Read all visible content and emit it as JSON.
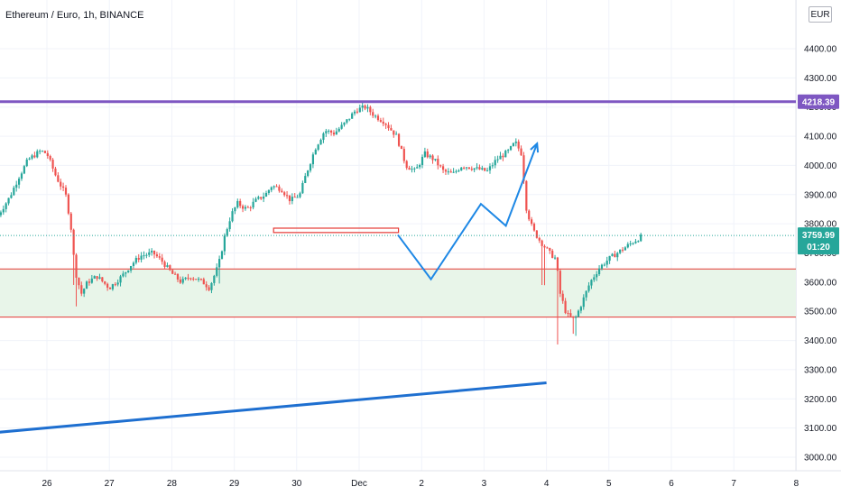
{
  "chart_data": {
    "type": "candlestick",
    "title": "Ethereum / Euro, 1h, BINANCE",
    "currency": "EUR",
    "x_ticks": [
      "26",
      "27",
      "28",
      "29",
      "30",
      "Dec",
      "2",
      "3",
      "4",
      "5",
      "6",
      "7",
      "8"
    ],
    "y_ticks": [
      "3000.00",
      "3100.00",
      "3200.00",
      "3300.00",
      "3400.00",
      "3500.00",
      "3600.00",
      "3700.00",
      "3800.00",
      "3900.00",
      "4000.00",
      "4100.00",
      "4200.00",
      "4300.00",
      "4400.00"
    ],
    "ylim": [
      2960,
      4500
    ],
    "resistance_line": {
      "price": 4218.39,
      "label": "4218.39",
      "color": "#7e57c2"
    },
    "current_price": {
      "price": 3759.99,
      "label": "3759.99",
      "countdown": "01:20",
      "color": "#26a69a"
    },
    "support_zone": {
      "top": 3645,
      "bottom": 3480,
      "border_color": "#e53935",
      "fill_color": "#e8f5e9"
    },
    "small_box": {
      "day_start": 3.63,
      "day_end": 5.63,
      "low": 3770,
      "high": 3785,
      "color": "#e53935"
    },
    "trendline": {
      "points": [
        [
          -0.8,
          3085
        ],
        [
          8.0,
          3255
        ]
      ],
      "color": "#1e6fd0"
    },
    "projection": {
      "points": [
        [
          5.62,
          3762
        ],
        [
          6.15,
          3610
        ],
        [
          6.95,
          3868
        ],
        [
          7.35,
          3793
        ],
        [
          7.85,
          4075
        ]
      ],
      "color": "#1e88e5"
    },
    "price_path": [
      [
        -0.78,
        3830
      ],
      [
        -0.6,
        3890
      ],
      [
        -0.45,
        3960
      ],
      [
        -0.3,
        4020
      ],
      [
        -0.1,
        4050
      ],
      [
        0.0,
        4040
      ],
      [
        0.15,
        3960
      ],
      [
        0.3,
        3900
      ],
      [
        0.38,
        3800
      ],
      [
        0.45,
        3640
      ],
      [
        0.55,
        3560
      ],
      [
        0.65,
        3600
      ],
      [
        0.8,
        3620
      ],
      [
        1.0,
        3580
      ],
      [
        1.2,
        3620
      ],
      [
        1.35,
        3660
      ],
      [
        1.5,
        3690
      ],
      [
        1.7,
        3700
      ],
      [
        1.85,
        3670
      ],
      [
        2.0,
        3630
      ],
      [
        2.15,
        3600
      ],
      [
        2.3,
        3620
      ],
      [
        2.5,
        3600
      ],
      [
        2.6,
        3580
      ],
      [
        2.75,
        3660
      ],
      [
        2.85,
        3760
      ],
      [
        2.95,
        3830
      ],
      [
        3.05,
        3870
      ],
      [
        3.2,
        3850
      ],
      [
        3.35,
        3880
      ],
      [
        3.5,
        3900
      ],
      [
        3.6,
        3930
      ],
      [
        3.75,
        3920
      ],
      [
        3.9,
        3880
      ],
      [
        4.05,
        3900
      ],
      [
        4.15,
        3970
      ],
      [
        4.3,
        4060
      ],
      [
        4.45,
        4120
      ],
      [
        4.6,
        4110
      ],
      [
        4.75,
        4140
      ],
      [
        4.95,
        4190
      ],
      [
        5.1,
        4200
      ],
      [
        5.25,
        4170
      ],
      [
        5.4,
        4150
      ],
      [
        5.6,
        4100
      ],
      [
        5.75,
        4000
      ],
      [
        5.9,
        3980
      ],
      [
        6.05,
        4040
      ],
      [
        6.2,
        4020
      ],
      [
        6.35,
        3980
      ],
      [
        6.5,
        3970
      ],
      [
        6.65,
        4000
      ],
      [
        6.85,
        3990
      ],
      [
        7.05,
        3980
      ],
      [
        7.2,
        4020
      ],
      [
        7.4,
        4050
      ],
      [
        7.5,
        4080
      ],
      [
        7.6,
        4040
      ],
      [
        7.68,
        3850
      ],
      [
        7.78,
        3780
      ],
      [
        7.9,
        3740
      ],
      [
        8.05,
        3700
      ],
      [
        8.15,
        3680
      ],
      [
        8.22,
        3560
      ],
      [
        8.32,
        3490
      ],
      [
        8.45,
        3470
      ],
      [
        8.55,
        3520
      ],
      [
        8.7,
        3600
      ],
      [
        8.85,
        3650
      ],
      [
        9.0,
        3680
      ],
      [
        9.2,
        3710
      ],
      [
        9.4,
        3740
      ],
      [
        9.55,
        3760
      ]
    ]
  }
}
